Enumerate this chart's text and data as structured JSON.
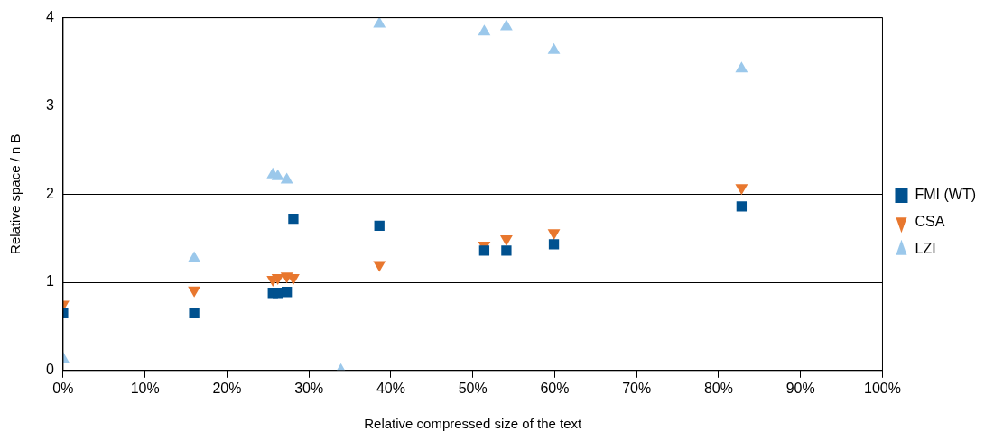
{
  "chart_data": {
    "type": "scatter",
    "xlabel": "Relative compressed size of the text",
    "ylabel": "Relative space / n B",
    "xlim": [
      0,
      100
    ],
    "xticks": [
      {
        "value": 0,
        "label": "0%"
      },
      {
        "value": 10,
        "label": "10%"
      },
      {
        "value": 20,
        "label": "20%"
      },
      {
        "value": 30,
        "label": "30%"
      },
      {
        "value": 40,
        "label": "40%"
      },
      {
        "value": 50,
        "label": "50%"
      },
      {
        "value": 60,
        "label": "60%"
      },
      {
        "value": 70,
        "label": "70%"
      },
      {
        "value": 80,
        "label": "80%"
      },
      {
        "value": 90,
        "label": "90%"
      },
      {
        "value": 100,
        "label": "100%"
      }
    ],
    "ylim": [
      0,
      4
    ],
    "yticks": [
      0,
      1,
      2,
      3,
      4
    ],
    "grid": "y",
    "legend": "right",
    "series": [
      {
        "name": "FMI (WT)",
        "color": "#00518f",
        "marker": "square",
        "x": [
          0,
          16,
          25.6,
          26.2,
          27.3,
          28.1,
          38.6,
          51.4,
          54.1,
          59.9,
          82.8
        ],
        "values": [
          0.65,
          0.65,
          0.88,
          0.88,
          0.89,
          1.72,
          1.64,
          1.36,
          1.36,
          1.43,
          1.86
        ]
      },
      {
        "name": "CSA",
        "color": "#e8772e",
        "marker": "triangle-down",
        "x": [
          0,
          16,
          25.6,
          26.2,
          27.3,
          28.1,
          38.6,
          51.4,
          54.1,
          59.9,
          82.8
        ],
        "values": [
          0.75,
          0.91,
          1.03,
          1.05,
          1.07,
          1.05,
          1.2,
          1.42,
          1.49,
          1.56,
          2.07
        ]
      },
      {
        "name": "LZI",
        "color": "#9bc8eb",
        "marker": "triangle",
        "x": [
          0,
          16,
          25.6,
          26.2,
          27.3,
          33.9,
          38.6,
          51.4,
          54.1,
          59.9,
          82.8
        ],
        "values": [
          0.13,
          1.27,
          2.22,
          2.2,
          2.16,
          0,
          3.93,
          3.84,
          3.9,
          3.63,
          3.42
        ]
      }
    ]
  }
}
